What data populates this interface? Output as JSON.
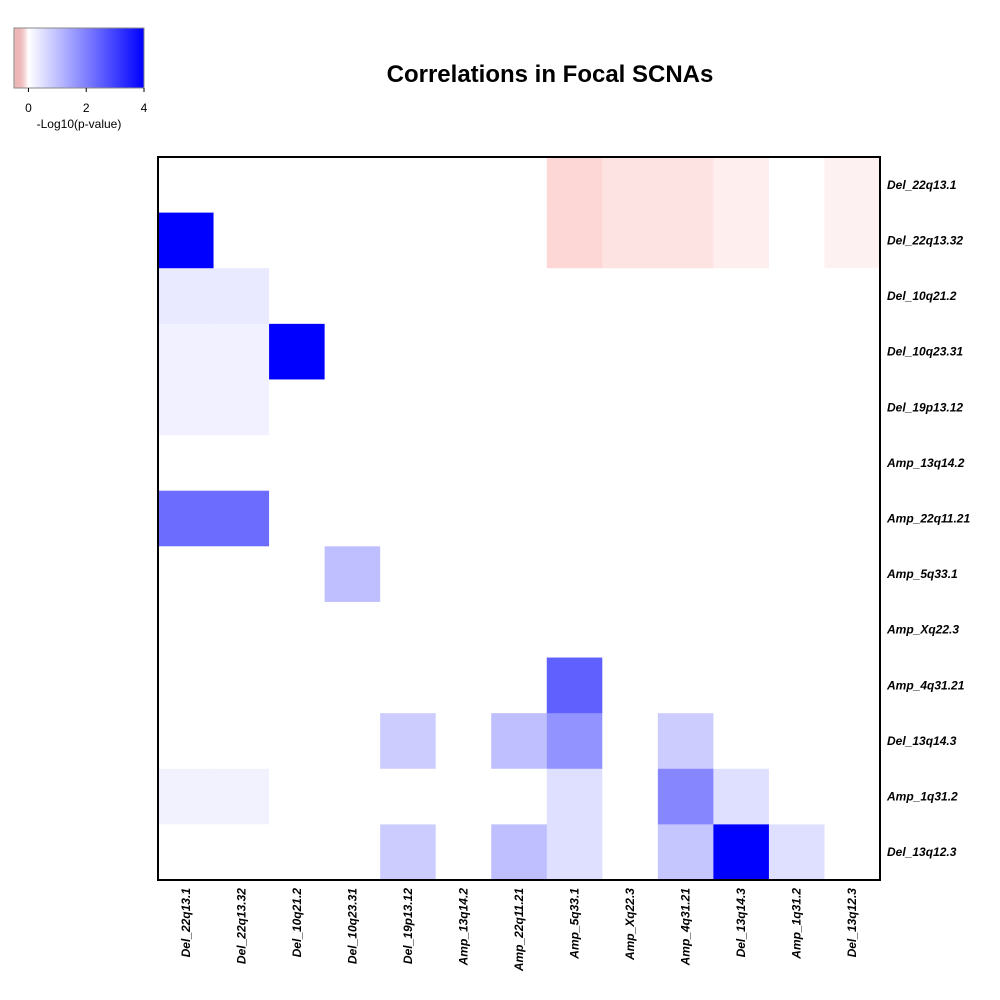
{
  "chart_data": {
    "type": "heatmap",
    "title": "Correlations in Focal SCNAs",
    "colorbar": {
      "label": "-Log10(p-value)",
      "ticks": [
        "0",
        "2",
        "4"
      ],
      "tick_values": [
        0,
        2,
        4
      ],
      "range": [
        -0.5,
        4
      ],
      "low_color": "#d24040",
      "mid_color": "#ffffff",
      "high_color": "#0000ff"
    },
    "rows": [
      "Del_22q13.1",
      "Del_22q13.32",
      "Del_10q21.2",
      "Del_10q23.31",
      "Del_19p13.12",
      "Amp_13q14.2",
      "Amp_22q11.21",
      "Amp_5q33.1",
      "Amp_Xq22.3",
      "Amp_4q31.21",
      "Del_13q14.3",
      "Amp_1q31.2",
      "Del_13q12.3"
    ],
    "columns": [
      "Del_22q13.1",
      "Del_22q13.32",
      "Del_10q21.2",
      "Del_10q23.31",
      "Del_19p13.12",
      "Amp_13q14.2",
      "Amp_22q11.21",
      "Amp_5q33.1",
      "Amp_Xq22.3",
      "Amp_4q31.21",
      "Del_13q14.3",
      "Amp_1q31.2",
      "Del_13q12.3"
    ],
    "values": [
      [
        0,
        0,
        0,
        0,
        0,
        0,
        0,
        -0.12,
        -0.08,
        -0.08,
        -0.05,
        0,
        -0.04
      ],
      [
        4,
        0,
        0,
        0,
        0,
        0,
        0,
        -0.12,
        -0.08,
        -0.08,
        -0.05,
        0,
        -0.04
      ],
      [
        0.35,
        0.35,
        0,
        0,
        0,
        0,
        0,
        0,
        0,
        0,
        0,
        0,
        0
      ],
      [
        0.22,
        0.22,
        4,
        0,
        0,
        0,
        0,
        0,
        0,
        0,
        0,
        0,
        0
      ],
      [
        0.22,
        0.22,
        0,
        0,
        0,
        0,
        0,
        0,
        0,
        0,
        0,
        0,
        0
      ],
      [
        0,
        0,
        0,
        0,
        0,
        0,
        0,
        0,
        0,
        0,
        0,
        0,
        0
      ],
      [
        2.3,
        2.3,
        0,
        0,
        0,
        0,
        0,
        0,
        0,
        0,
        0,
        0,
        0
      ],
      [
        0,
        0,
        0,
        1,
        0,
        0,
        0,
        0,
        0,
        0,
        0,
        0,
        0
      ],
      [
        0,
        0,
        0,
        0,
        0,
        0,
        0,
        0,
        0,
        0,
        0,
        0,
        0
      ],
      [
        0,
        0,
        0,
        0,
        0,
        0,
        0,
        2.5,
        0,
        0,
        0,
        0,
        0
      ],
      [
        0,
        0,
        0,
        0,
        0.8,
        0,
        1.0,
        1.7,
        0,
        0.8,
        0,
        0,
        0
      ],
      [
        0.2,
        0.2,
        0,
        0,
        0,
        0,
        0,
        0.5,
        0,
        1.9,
        0.5,
        0,
        0
      ],
      [
        0,
        0,
        0,
        0,
        0.8,
        0,
        1.0,
        0.5,
        0,
        0.9,
        4,
        0.5,
        0
      ]
    ]
  }
}
